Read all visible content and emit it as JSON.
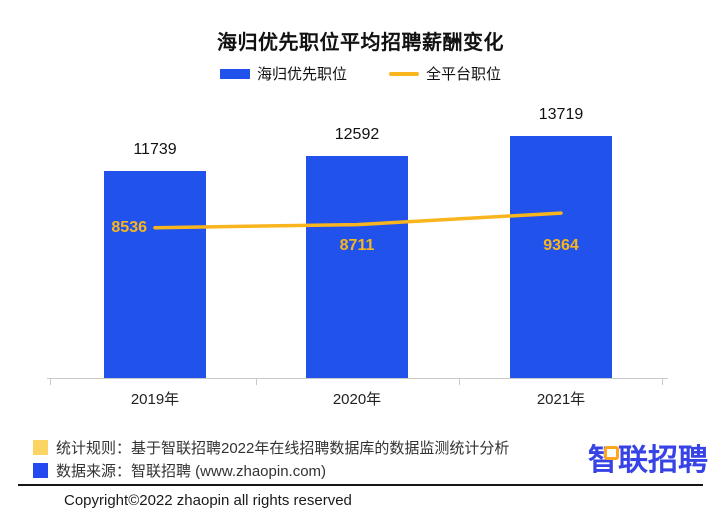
{
  "title": "海归优先职位平均招聘薪酬变化",
  "chart_data": {
    "type": "bar",
    "title": "海归优先职位平均招聘薪酬变化",
    "categories": [
      "2019年",
      "2020年",
      "2021年"
    ],
    "series": [
      {
        "name": "海归优先职位",
        "type": "bar",
        "color": "#2252EC",
        "values": [
          11739,
          12592,
          13719
        ]
      },
      {
        "name": "全平台职位",
        "type": "line",
        "color": "#F8B51D",
        "values": [
          8536,
          8711,
          9364
        ]
      }
    ],
    "xlabel": "",
    "ylabel": "",
    "ylim": [
      0,
      15745
    ],
    "grid": false,
    "legend_position": "top",
    "value_labels": true
  },
  "footer": {
    "note1": "统计规则：基于智联招聘2022年在线招聘数据库的数据监测统计分析",
    "note1_swatch": "#FBD463",
    "note2": "数据来源：智联招聘 (www.zhaopin.com)",
    "note2_swatch": "#2449F0",
    "logo_text": "智联招聘",
    "logo_color": "#3743E5",
    "logo_accent_color": "#FFA51F",
    "copyright": "Copyright©2022 zhaopin all rights reserved"
  }
}
